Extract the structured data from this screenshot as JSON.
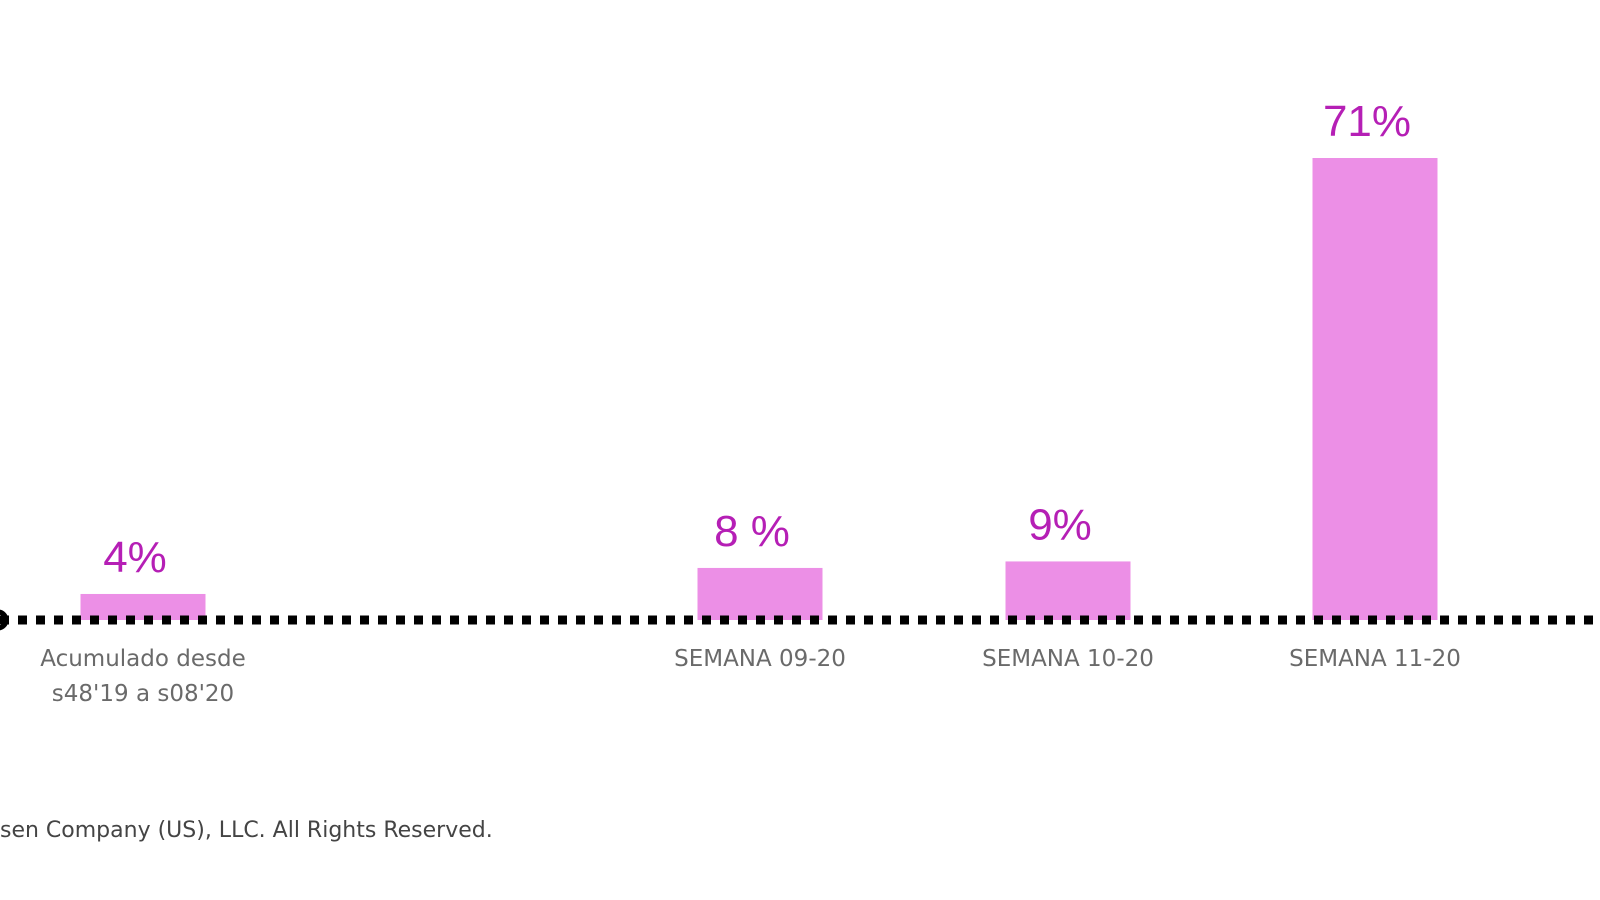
{
  "chart_data": {
    "type": "bar",
    "title": "",
    "xlabel": "",
    "ylabel": "",
    "categories": [
      [
        "Acumulado desde",
        "s48'19 a s08'20"
      ],
      [
        "SEMANA 09-20"
      ],
      [
        "SEMANA 10-20"
      ],
      [
        "SEMANA 11-20"
      ]
    ],
    "values": [
      4,
      8,
      9,
      71
    ],
    "value_labels": [
      "4%",
      "8 %",
      "9%",
      "71%"
    ],
    "ylim": [
      0,
      75
    ],
    "grid": false,
    "colors": {
      "bar": "#ec8fe6",
      "label": "#b51fb5",
      "axis": "#000000"
    }
  },
  "footer": {
    "copyright": "sen Company (US), LLC. All Rights Reserved."
  }
}
